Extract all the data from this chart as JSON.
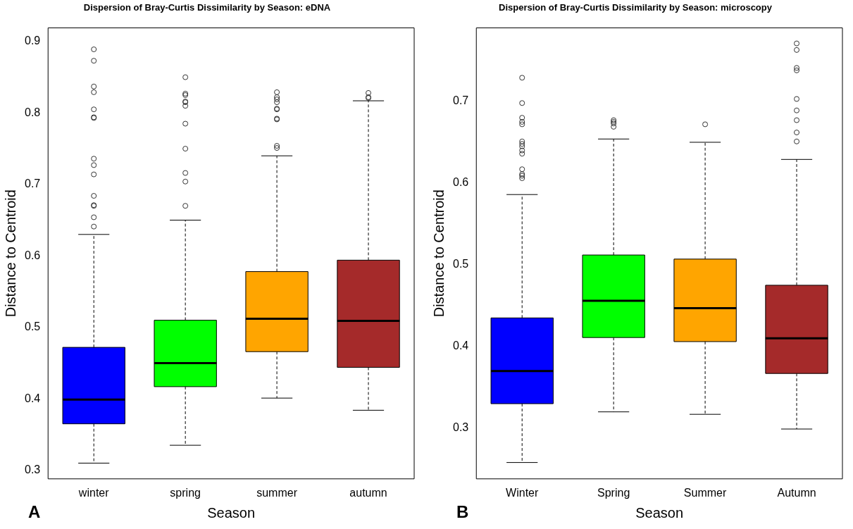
{
  "chart_data": [
    {
      "type": "box",
      "title": "Dispersion of Bray-Curtis Dissimilarity by Season: eDNA",
      "xlabel": "Season",
      "ylabel": "Distance to Centroid",
      "categories": [
        "winter",
        "spring",
        "summer",
        "autumn"
      ],
      "colors": [
        "#0000ff",
        "#00ff00",
        "#ffa500",
        "#a52a2a"
      ],
      "boxes": [
        {
          "low": 0.31,
          "q1": 0.365,
          "median": 0.399,
          "q3": 0.472,
          "high": 0.63,
          "outliers": [
            0.889,
            0.873,
            0.837,
            0.829,
            0.805,
            0.794,
            0.793,
            0.736,
            0.727,
            0.714,
            0.684,
            0.671,
            0.67,
            0.654,
            0.641
          ]
        },
        {
          "low": 0.335,
          "q1": 0.417,
          "median": 0.45,
          "q3": 0.51,
          "high": 0.65,
          "outliers": [
            0.85,
            0.827,
            0.825,
            0.816,
            0.815,
            0.81,
            0.785,
            0.75,
            0.716,
            0.704,
            0.67
          ]
        },
        {
          "low": 0.401,
          "q1": 0.466,
          "median": 0.512,
          "q3": 0.578,
          "high": 0.74,
          "outliers": [
            0.829,
            0.822,
            0.819,
            0.815,
            0.806,
            0.805,
            0.792,
            0.791,
            0.754,
            0.751
          ]
        },
        {
          "low": 0.384,
          "q1": 0.444,
          "median": 0.509,
          "q3": 0.594,
          "high": 0.817,
          "outliers": [
            0.828,
            0.822,
            0.821
          ]
        }
      ],
      "ylim": [
        0.288,
        0.919
      ],
      "yticks": [
        0.3,
        0.4,
        0.5,
        0.6,
        0.7,
        0.8,
        0.9
      ],
      "grid": false,
      "legend": false,
      "annotations": [
        "A"
      ]
    },
    {
      "type": "box",
      "title": "Dispersion of Bray-Curtis Dissimilarity by Season: microscopy",
      "xlabel": "Season",
      "ylabel": "Distance to Centroid",
      "categories": [
        "Winter",
        "Spring",
        "Summer",
        "Autumn"
      ],
      "colors": [
        "#0000ff",
        "#00ff00",
        "#ffa500",
        "#a52a2a"
      ],
      "boxes": [
        {
          "low": 0.258,
          "q1": 0.33,
          "median": 0.37,
          "q3": 0.435,
          "high": 0.586,
          "outliers": [
            0.729,
            0.698,
            0.68,
            0.675,
            0.672,
            0.651,
            0.648,
            0.645,
            0.64,
            0.636,
            0.617,
            0.611,
            0.609,
            0.606
          ]
        },
        {
          "low": 0.32,
          "q1": 0.411,
          "median": 0.456,
          "q3": 0.512,
          "high": 0.654,
          "outliers": [
            0.677,
            0.675,
            0.673,
            0.669
          ]
        },
        {
          "low": 0.317,
          "q1": 0.406,
          "median": 0.447,
          "q3": 0.507,
          "high": 0.65,
          "outliers": [
            0.672
          ]
        },
        {
          "low": 0.299,
          "q1": 0.367,
          "median": 0.41,
          "q3": 0.475,
          "high": 0.629,
          "outliers": [
            0.771,
            0.763,
            0.741,
            0.738,
            0.703,
            0.689,
            0.677,
            0.662,
            0.651
          ]
        }
      ],
      "ylim": [
        0.238,
        0.79
      ],
      "yticks": [
        0.3,
        0.4,
        0.5,
        0.6,
        0.7
      ],
      "grid": false,
      "legend": false,
      "annotations": [
        "B"
      ]
    }
  ]
}
